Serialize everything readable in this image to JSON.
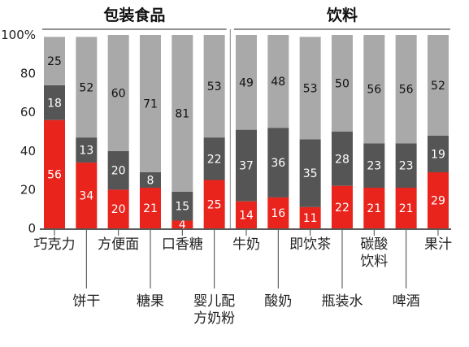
{
  "chart_data": {
    "type": "bar",
    "stacked": true,
    "groups": [
      {
        "label": "包装食品",
        "categories": [
          "巧克力",
          "饼干",
          "方便面",
          "糖果",
          "口香糖",
          "婴儿配方奶粉"
        ]
      },
      {
        "label": "饮料",
        "categories": [
          "牛奶",
          "酸奶",
          "即饮茶",
          "瓶装水",
          "碳酸饮料",
          "啤酒",
          "果汁"
        ]
      }
    ],
    "categories": [
      "巧克力",
      "饼干",
      "方便面",
      "糖果",
      "口香糖",
      "婴儿配方奶粉",
      "牛奶",
      "酸奶",
      "即饮茶",
      "瓶装水",
      "碳酸饮料",
      "啤酒",
      "果汁"
    ],
    "category_display": [
      [
        "巧克力"
      ],
      [
        "饼干"
      ],
      [
        "方便面"
      ],
      [
        "糖果"
      ],
      [
        "口香糖"
      ],
      [
        "婴儿配",
        "方奶粉"
      ],
      [
        "牛奶"
      ],
      [
        "酸奶"
      ],
      [
        "即饮茶"
      ],
      [
        "瓶装水"
      ],
      [
        "碳酸",
        "饮料"
      ],
      [
        "啤酒"
      ],
      [
        "果汁"
      ]
    ],
    "series": [
      {
        "color": "#e8241c",
        "values": [
          56,
          34,
          20,
          21,
          4,
          25,
          14,
          16,
          11,
          22,
          21,
          21,
          29
        ]
      },
      {
        "color": "#555555",
        "values": [
          18,
          13,
          20,
          8,
          15,
          22,
          37,
          36,
          35,
          28,
          23,
          23,
          19
        ]
      },
      {
        "color": "#a9a9a9",
        "values": [
          25,
          52,
          60,
          71,
          81,
          53,
          49,
          48,
          53,
          50,
          56,
          56,
          52
        ]
      }
    ],
    "yticks": [
      "0",
      "20",
      "40",
      "60",
      "80",
      "100%"
    ],
    "ylim": [
      0,
      100
    ],
    "grid": false,
    "legend": "none"
  }
}
